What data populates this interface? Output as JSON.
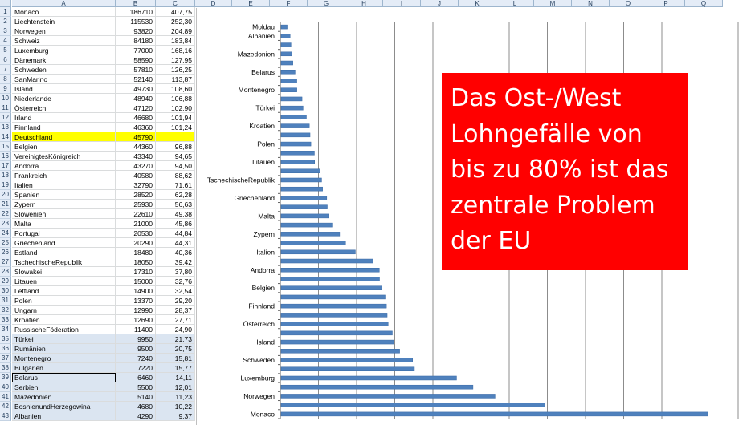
{
  "sheet": {
    "columns": [
      "A",
      "B",
      "C",
      "D",
      "E",
      "F",
      "G",
      "H",
      "I",
      "J",
      "K",
      "L",
      "M",
      "N",
      "O",
      "P",
      "Q"
    ],
    "rows": [
      [
        "1",
        "Monaco",
        "186710",
        "407,75"
      ],
      [
        "2",
        "Liechtenstein",
        "115530",
        "252,30"
      ],
      [
        "3",
        "Norwegen",
        "93820",
        "204,89"
      ],
      [
        "4",
        "Schweiz",
        "84180",
        "183,84"
      ],
      [
        "5",
        "Luxemburg",
        "77000",
        "168,16"
      ],
      [
        "6",
        "Dänemark",
        "58590",
        "127,95"
      ],
      [
        "7",
        "Schweden",
        "57810",
        "126,25"
      ],
      [
        "8",
        "SanMarino",
        "52140",
        "113,87"
      ],
      [
        "9",
        "Island",
        "49730",
        "108,60"
      ],
      [
        "10",
        "Niederlande",
        "48940",
        "106,88"
      ],
      [
        "11",
        "Österreich",
        "47120",
        "102,90"
      ],
      [
        "12",
        "Irland",
        "46680",
        "101,94"
      ],
      [
        "13",
        "Finnland",
        "46360",
        "101,24"
      ],
      [
        "14",
        "Deutschland",
        "45790",
        ""
      ],
      [
        "15",
        "Belgien",
        "44360",
        "96,88"
      ],
      [
        "16",
        "VereinigtesKönigreich",
        "43340",
        "94,65"
      ],
      [
        "17",
        "Andorra",
        "43270",
        "94,50"
      ],
      [
        "18",
        "Frankreich",
        "40580",
        "88,62"
      ],
      [
        "19",
        "Italien",
        "32790",
        "71,61"
      ],
      [
        "20",
        "Spanien",
        "28520",
        "62,28"
      ],
      [
        "21",
        "Zypern",
        "25930",
        "56,63"
      ],
      [
        "22",
        "Slowenien",
        "22610",
        "49,38"
      ],
      [
        "23",
        "Malta",
        "21000",
        "45,86"
      ],
      [
        "24",
        "Portugal",
        "20530",
        "44,84"
      ],
      [
        "25",
        "Griechenland",
        "20290",
        "44,31"
      ],
      [
        "26",
        "Estland",
        "18480",
        "40,36"
      ],
      [
        "27",
        "TschechischeRepublik",
        "18050",
        "39,42"
      ],
      [
        "28",
        "Slowakei",
        "17310",
        "37,80"
      ],
      [
        "29",
        "Litauen",
        "15000",
        "32,76"
      ],
      [
        "30",
        "Lettland",
        "14900",
        "32,54"
      ],
      [
        "31",
        "Polen",
        "13370",
        "29,20"
      ],
      [
        "32",
        "Ungarn",
        "12990",
        "28,37"
      ],
      [
        "33",
        "Kroatien",
        "12690",
        "27,71"
      ],
      [
        "34",
        "RussischeFöderation",
        "11400",
        "24,90"
      ],
      [
        "35",
        "Türkei",
        "9950",
        "21,73"
      ],
      [
        "36",
        "Rumänien",
        "9500",
        "20,75"
      ],
      [
        "37",
        "Montenegro",
        "7240",
        "15,81"
      ],
      [
        "38",
        "Bulgarien",
        "7220",
        "15,77"
      ],
      [
        "39",
        "Belarus",
        "6460",
        "14,11"
      ],
      [
        "40",
        "Serbien",
        "5500",
        "12,01"
      ],
      [
        "41",
        "Mazedonien",
        "5140",
        "11,23"
      ],
      [
        "42",
        "BosnienundHerzegowina",
        "4680",
        "10,22"
      ],
      [
        "43",
        "Albanien",
        "4290",
        "9,37"
      ]
    ]
  },
  "callout": {
    "lines": [
      "Das Ost-/West",
      "Lohngefälle von",
      "bis zu 80% ist das",
      "zentrale Problem",
      "der EU"
    ]
  },
  "chart_data": {
    "type": "bar",
    "orientation": "horizontal",
    "categories": [
      "Monaco",
      "Liechtenstein",
      "Norwegen",
      "Schweiz",
      "Luxemburg",
      "Dänemark",
      "Schweden",
      "SanMarino",
      "Island",
      "Niederlande",
      "Österreich",
      "Irland",
      "Finnland",
      "Deutschland",
      "Belgien",
      "VereinigtesKönigreich",
      "Andorra",
      "Frankreich",
      "Italien",
      "Spanien",
      "Zypern",
      "Slowenien",
      "Malta",
      "Portugal",
      "Griechenland",
      "Estland",
      "TschechischeRepublik",
      "Slowakei",
      "Litauen",
      "Lettland",
      "Polen",
      "Ungarn",
      "Kroatien",
      "RussischeFöderation",
      "Türkei",
      "Rumänien",
      "Montenegro",
      "Bulgarien",
      "Belarus",
      "Serbien",
      "Mazedonien",
      "BosnienundHerzegowina",
      "Albanien",
      "Moldau"
    ],
    "values": [
      186710,
      115530,
      93820,
      84180,
      77000,
      58590,
      57810,
      52140,
      49730,
      48940,
      47120,
      46680,
      46360,
      45790,
      44360,
      43340,
      43270,
      40580,
      32790,
      28520,
      25930,
      22610,
      21000,
      20530,
      20290,
      18480,
      18050,
      17310,
      15000,
      14900,
      13370,
      12990,
      12690,
      11400,
      9950,
      9500,
      7240,
      7220,
      6460,
      5500,
      5140,
      4680,
      4290,
      3000
    ],
    "shown_labels": [
      "Monaco",
      "Norwegen",
      "Luxemburg",
      "Schweden",
      "Island",
      "Österreich",
      "Finnland",
      "Belgien",
      "Andorra",
      "Italien",
      "Zypern",
      "Malta",
      "Griechenland",
      "TschechischeRepublik",
      "Litauen",
      "Polen",
      "Kroatien",
      "Türkei",
      "Montenegro",
      "Belarus",
      "Mazedonien",
      "Albanien",
      "Moldau"
    ],
    "xlim": [
      0,
      200000
    ],
    "grid": true,
    "bar_color": "#4f81bd"
  }
}
